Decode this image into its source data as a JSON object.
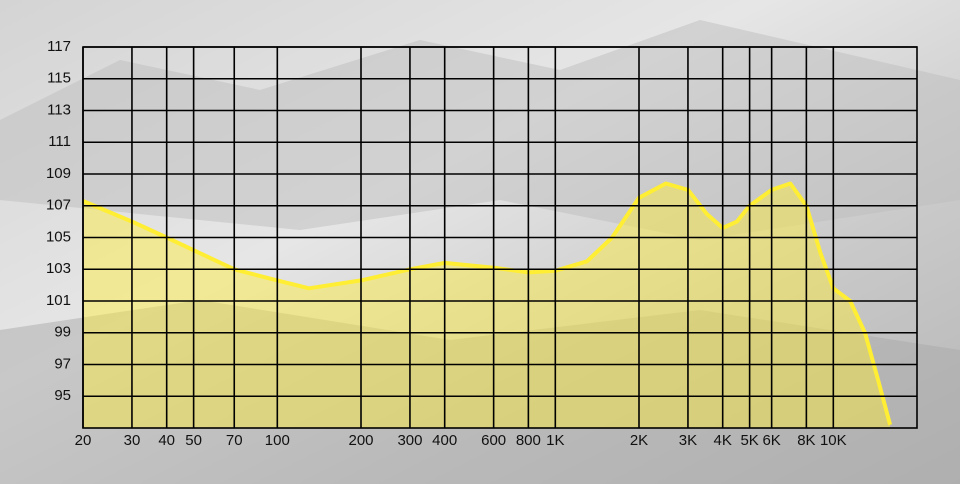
{
  "chart_data": {
    "type": "area",
    "x": [
      20,
      30,
      40,
      50,
      70,
      100,
      130,
      200,
      300,
      400,
      600,
      800,
      1000,
      1300,
      1600,
      2000,
      2500,
      3000,
      3500,
      4000,
      4500,
      5000,
      6000,
      7000,
      8000,
      9000,
      10000,
      11500,
      13000,
      14500,
      16000
    ],
    "series": [
      {
        "color": "#ffee33",
        "values": [
          107.3,
          106,
          105,
          104.2,
          103,
          102.3,
          101.8,
          102.3,
          103,
          103.4,
          103.1,
          102.8,
          102.9,
          103.5,
          105,
          107.5,
          108.4,
          108,
          106.5,
          105.6,
          106,
          107,
          108,
          108.4,
          107,
          104,
          101.8,
          101,
          99,
          96,
          93.2
        ]
      }
    ],
    "xscale": "log",
    "xlim": [
      20,
      20000
    ],
    "xticks": [
      20,
      30,
      40,
      50,
      70,
      100,
      200,
      300,
      400,
      600,
      800,
      {
        "value": 1000,
        "label": "1K"
      },
      {
        "value": 2000,
        "label": "2K"
      },
      {
        "value": 3000,
        "label": "3K"
      },
      {
        "value": 4000,
        "label": "4K"
      },
      {
        "value": 5000,
        "label": "5K"
      },
      {
        "value": 6000,
        "label": "6K"
      },
      {
        "value": 8000,
        "label": "8K"
      },
      {
        "value": 10000,
        "label": "10K"
      }
    ],
    "ylim": [
      93,
      117
    ],
    "yticks": [
      95,
      97,
      99,
      101,
      103,
      105,
      107,
      109,
      111,
      113,
      115,
      117
    ],
    "grid": true
  }
}
